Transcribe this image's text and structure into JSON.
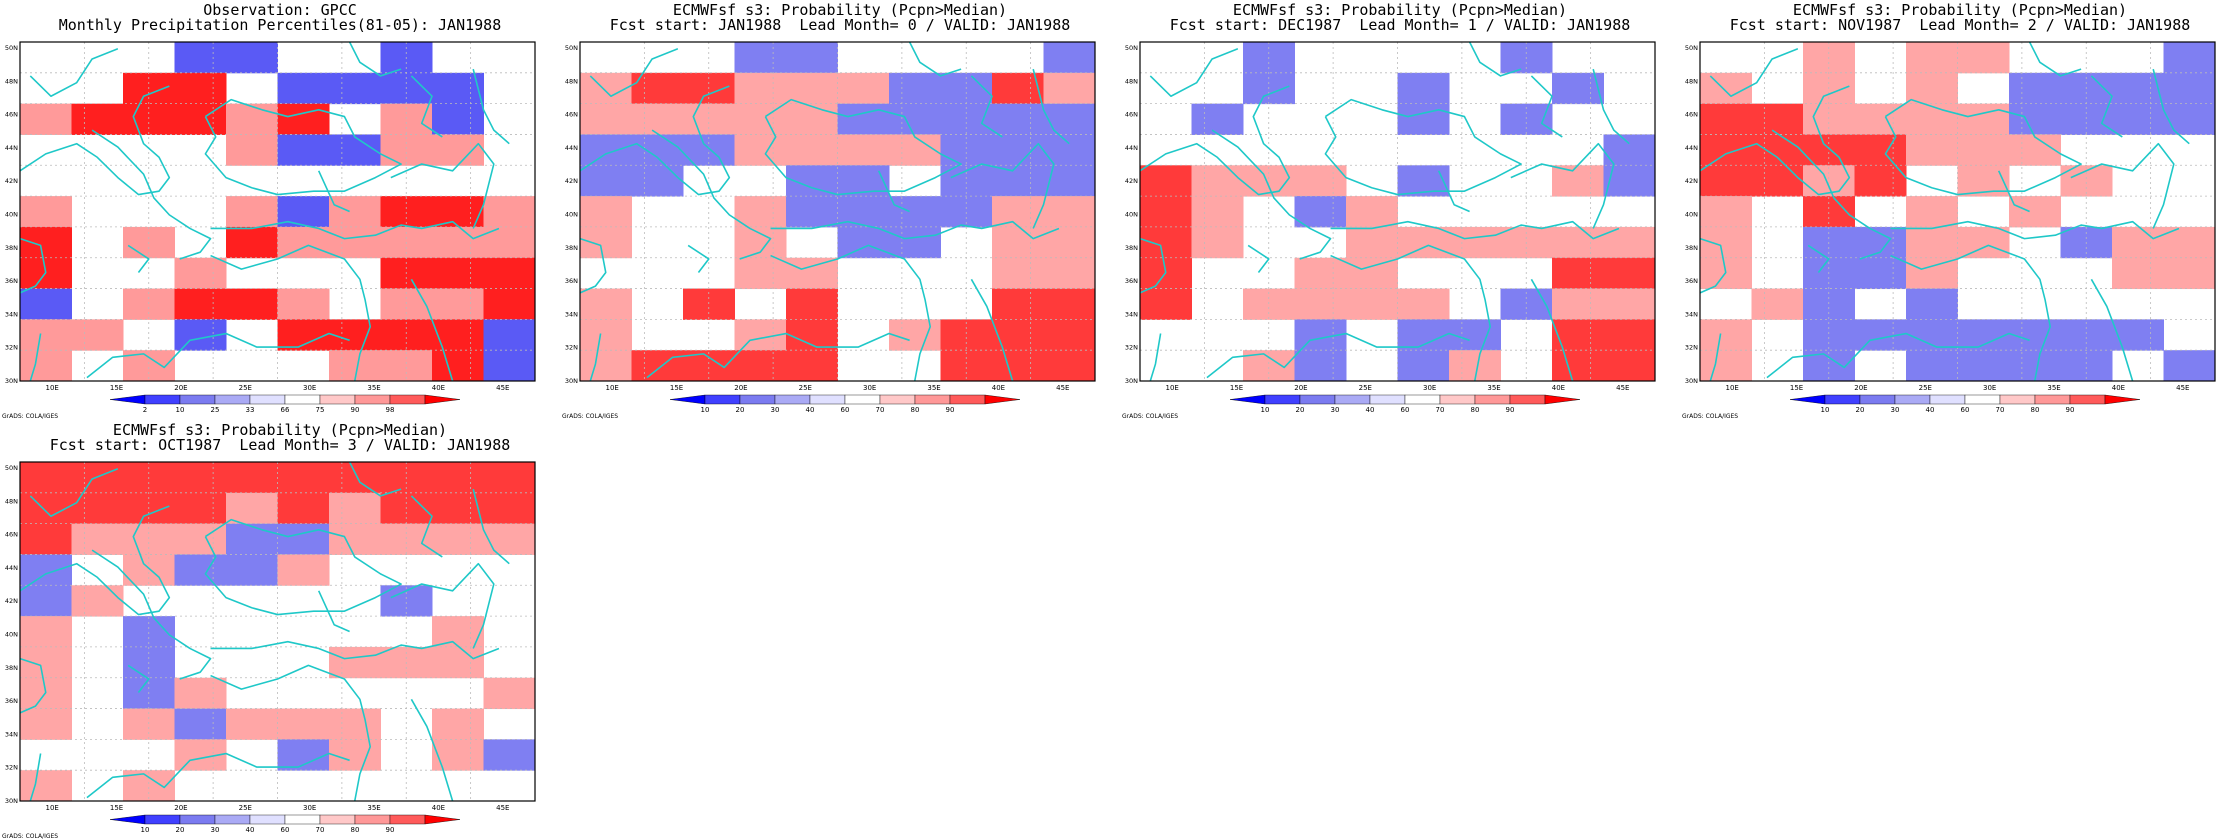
{
  "colors": {
    "coastline": "#1fc8c8",
    "grid": "#bbbbbb",
    "background": "#ffffff"
  },
  "axes": {
    "x_ticks": [
      "10E",
      "15E",
      "20E",
      "25E",
      "30E",
      "35E",
      "40E",
      "45E"
    ],
    "y_ticks": [
      "50N",
      "48N",
      "46N",
      "44N",
      "42N",
      "40N",
      "38N",
      "36N",
      "34N",
      "32N",
      "30N"
    ]
  },
  "credit": "GrADS: COLA/IGES",
  "panels": [
    {
      "title": "Observation: GPCC",
      "subtitle": "Monthly Precipitation Percentiles(81-05): JAN1988",
      "colorbar": {
        "labels": [
          "2",
          "10",
          "25",
          "33",
          "66",
          "75",
          "90",
          "98"
        ],
        "colors": [
          "#0000ff",
          "#4040ff",
          "#7b7bf0",
          "#aaaaf5",
          "#e0e0ff",
          "#ffffff",
          "#ffc8c8",
          "#ff9898",
          "#ff5a5a",
          "#ff0000"
        ]
      },
      "grid": [
        "...11..1..",
        "..33.1111.",
        "233323.21.",
        "....21122.",
        "..........",
        "2...212332",
        "3.2.322222",
        "3..2...333",
        "1.2332.223",
        "22.1.33331",
        "2.2...2231"
      ]
    },
    {
      "title": "ECMWFsf s3: Probability (Pcpn>Median)",
      "subtitle": "Fcst start: JAN1988  Lead Month= 0 / VALID: JAN1988",
      "colorbar": {
        "labels": [
          "10",
          "20",
          "30",
          "40",
          "60",
          "70",
          "80",
          "90"
        ],
        "colors": [
          "#0000ff",
          "#4040ff",
          "#7b7bf0",
          "#aaaaf5",
          "#e0e0ff",
          "#ffffff",
          "#ffc8c8",
          "#ff9898",
          "#ff5a5a",
          "#ff0000"
        ]
      },
      "grid": [
        "...11....1",
        "2332221132",
        "2222211111",
        "1112222111",
        "11..11.111",
        "2..2111122",
        "2..2.11.22",
        "...22...22",
        "2.3.3...33",
        "2..23.2333",
        "23333..333"
      ]
    },
    {
      "title": "ECMWFsf s3: Probability (Pcpn>Median)",
      "subtitle": "Fcst start: DEC1987  Lead Month= 1 / VALID: JAN1988",
      "colorbar": {
        "labels": [
          "10",
          "20",
          "30",
          "40",
          "60",
          "70",
          "80",
          "90"
        ],
        "colors": [
          "#0000ff",
          "#4040ff",
          "#7b7bf0",
          "#aaaaf5",
          "#e0e0ff",
          "#ffffff",
          "#ffc8c8",
          "#ff9898",
          "#ff5a5a",
          "#ff0000"
        ]
      },
      "grid": [
        "..1....1..",
        "..1..1..1.",
        ".1...1.1..",
        ".........1",
        "3222.1..21",
        "32.12.....",
        "32..222222",
        "3..22...33",
        "3.2222.122",
        "...1.11.33",
        "..21.12.33"
      ]
    },
    {
      "title": "ECMWFsf s3: Probability (Pcpn>Median)",
      "subtitle": "Fcst start: NOV1987  Lead Month= 2 / VALID: JAN1988",
      "colorbar": {
        "labels": [
          "10",
          "20",
          "30",
          "40",
          "60",
          "70",
          "80",
          "90"
        ],
        "colors": [
          "#0000ff",
          "#4040ff",
          "#7b7bf0",
          "#aaaaf5",
          "#e0e0ff",
          "#ffffff",
          "#ffc8c8",
          "#ff9898",
          "#ff5a5a",
          "#ff0000"
        ]
      },
      "grid": [
        "..2.22...1",
        "2.2.2.1111",
        "3322221111",
        "3333222...",
        "3323.2.2..",
        "2.3.2.2...",
        "2.1122.122",
        "2.112...22",
        ".21.1.....",
        "2.1111111.",
        "2.1.1111.1"
      ]
    },
    {
      "title": "ECMWFsf s3: Probability (Pcpn>Median)",
      "subtitle": "Fcst start: OCT1987  Lead Month= 3 / VALID: JAN1988",
      "colorbar": {
        "labels": [
          "10",
          "20",
          "30",
          "40",
          "60",
          "70",
          "80",
          "90"
        ],
        "colors": [
          "#0000ff",
          "#4040ff",
          "#7b7bf0",
          "#aaaaf5",
          "#e0e0ff",
          "#ffffff",
          "#ffc8c8",
          "#ff9898",
          "#ff5a5a",
          "#ff0000"
        ]
      },
      "grid": [
        "3333333333",
        "3333232333",
        "3222112222",
        "1.2112....",
        "12.....1..",
        "2.1.....2.",
        "2.1...222.",
        "2.12.....2",
        "2.21222.2.",
        "...2.12.21",
        "2.2......."
      ]
    }
  ]
}
